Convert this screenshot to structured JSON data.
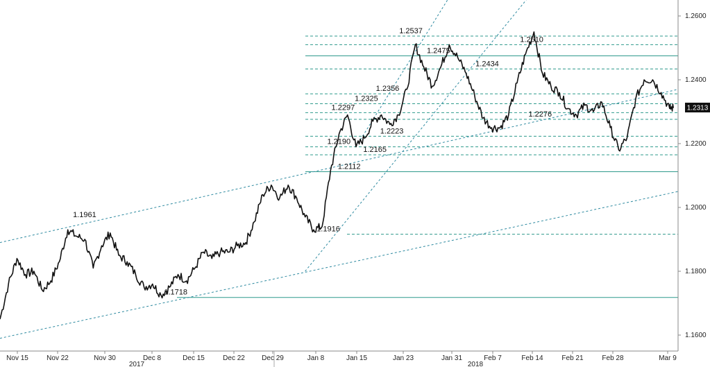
{
  "chart_data": {
    "type": "line",
    "title": "",
    "xlabel": "",
    "ylabel": "",
    "ylim": [
      1.155,
      1.265
    ],
    "y_ticks": [
      "1.2600",
      "1.2400",
      "1.2200",
      "1.2000",
      "1.1800",
      "1.1600"
    ],
    "x_ticks": [
      "Nov 15",
      "Nov 22",
      "Nov 30",
      "Dec 8",
      "Dec 15",
      "Dec 22",
      "Dec 29",
      "Jan 8",
      "Jan 15",
      "Jan 23",
      "Jan 31",
      "Feb 7",
      "Feb 14",
      "Feb 21",
      "Feb 28",
      "Mar 9"
    ],
    "year_labels": [
      "2017",
      "2018"
    ],
    "last_value": "1.2313",
    "grid": false,
    "series": [
      {
        "points": [
          [
            0,
            1.165
          ],
          [
            2,
            1.176
          ],
          [
            4,
            1.184
          ],
          [
            6,
            1.179
          ],
          [
            8,
            1.18
          ],
          [
            10,
            1.174
          ],
          [
            12,
            1.177
          ],
          [
            14,
            1.183
          ],
          [
            16,
            1.193
          ],
          [
            18,
            1.191
          ],
          [
            20,
            1.19
          ],
          [
            22,
            1.181
          ],
          [
            24,
            1.188
          ],
          [
            26,
            1.192
          ],
          [
            28,
            1.185
          ],
          [
            30,
            1.183
          ],
          [
            32,
            1.179
          ],
          [
            34,
            1.175
          ],
          [
            36,
            1.176
          ],
          [
            38,
            1.1725
          ],
          [
            40,
            1.175
          ],
          [
            42,
            1.179
          ],
          [
            44,
            1.177
          ],
          [
            46,
            1.181
          ],
          [
            48,
            1.186
          ],
          [
            50,
            1.184
          ],
          [
            52,
            1.186
          ],
          [
            54,
            1.186
          ],
          [
            56,
            1.188
          ],
          [
            58,
            1.189
          ],
          [
            60,
            1.1955
          ],
          [
            62,
            1.204
          ],
          [
            64,
            1.207
          ],
          [
            66,
            1.203
          ],
          [
            68,
            1.207
          ],
          [
            70,
            1.203
          ],
          [
            72,
            1.197
          ],
          [
            74,
            1.193
          ],
          [
            76,
            1.194
          ],
          [
            78,
            1.2116
          ],
          [
            80,
            1.223
          ],
          [
            82,
            1.229
          ],
          [
            84,
            1.219
          ],
          [
            86,
            1.2217
          ],
          [
            88,
            1.227
          ],
          [
            90,
            1.229
          ],
          [
            92,
            1.226
          ],
          [
            94,
            1.229
          ],
          [
            96,
            1.237
          ],
          [
            98,
            1.251
          ],
          [
            100,
            1.244
          ],
          [
            102,
            1.238
          ],
          [
            104,
            1.244
          ],
          [
            106,
            1.251
          ],
          [
            108,
            1.247
          ],
          [
            110,
            1.242
          ],
          [
            112,
            1.235
          ],
          [
            114,
            1.228
          ],
          [
            116,
            1.225
          ],
          [
            118,
            1.225
          ],
          [
            120,
            1.229
          ],
          [
            122,
            1.239
          ],
          [
            124,
            1.248
          ],
          [
            126,
            1.255
          ],
          [
            128,
            1.242
          ],
          [
            130,
            1.238
          ],
          [
            132,
            1.236
          ],
          [
            134,
            1.231
          ],
          [
            136,
            1.229
          ],
          [
            138,
            1.232
          ],
          [
            140,
            1.23
          ],
          [
            142,
            1.233
          ],
          [
            144,
            1.225
          ],
          [
            146,
            1.218
          ],
          [
            148,
            1.222
          ],
          [
            150,
            1.234
          ],
          [
            152,
            1.24
          ],
          [
            154,
            1.24
          ],
          [
            156,
            1.236
          ],
          [
            158,
            1.231
          ],
          [
            159,
            1.2313
          ]
        ]
      }
    ],
    "annotations": [
      {
        "label": "1.2537",
        "x": 96.5,
        "y": 1.2537
      },
      {
        "label": "1.2510",
        "x": 125,
        "y": 1.251
      },
      {
        "label": "1.2475",
        "x": 103,
        "y": 1.2475
      },
      {
        "label": "1.2434",
        "x": 114.5,
        "y": 1.2434
      },
      {
        "label": "1.2356",
        "x": 91,
        "y": 1.2356
      },
      {
        "label": "1.2325",
        "x": 86,
        "y": 1.2325
      },
      {
        "label": "1.2297",
        "x": 80.5,
        "y": 1.2297
      },
      {
        "label": "1.2276",
        "x": 127,
        "y": 1.2276
      },
      {
        "label": "1.2223",
        "x": 92,
        "y": 1.2223
      },
      {
        "label": "1.2190",
        "x": 79.5,
        "y": 1.219
      },
      {
        "label": "1.2165",
        "x": 88,
        "y": 1.2165
      },
      {
        "label": "1.2112",
        "x": 82,
        "y": 1.2112
      },
      {
        "label": "1.1961",
        "x": 19.5,
        "y": 1.1961
      },
      {
        "label": "1.1916",
        "x": 77,
        "y": 1.1916
      },
      {
        "label": "1.1718",
        "x": 41,
        "y": 1.1718
      }
    ],
    "horizontal_levels": [
      {
        "y": 1.2537,
        "style": "dashed"
      },
      {
        "y": 1.251,
        "style": "dashed"
      },
      {
        "y": 1.2475,
        "style": "solid"
      },
      {
        "y": 1.2434,
        "style": "dashed"
      },
      {
        "y": 1.2356,
        "style": "dashed"
      },
      {
        "y": 1.2325,
        "style": "dashed"
      },
      {
        "y": 1.2297,
        "style": "dashed"
      },
      {
        "y": 1.2276,
        "style": "dashed"
      },
      {
        "y": 1.2223,
        "style": "dashed"
      },
      {
        "y": 1.219,
        "style": "dashed"
      },
      {
        "y": 1.2165,
        "style": "dashed"
      },
      {
        "y": 1.2112,
        "style": "solid"
      },
      {
        "y": 1.1916,
        "style": "dashed"
      },
      {
        "y": 1.1718,
        "style": "solid"
      }
    ],
    "trendlines": [
      {
        "x1": 0,
        "y1": 1.159,
        "x2": 160,
        "y2": 1.205
      },
      {
        "x1": 0,
        "y1": 1.189,
        "x2": 160,
        "y2": 1.237
      },
      {
        "x1": 72,
        "y1": 1.18,
        "x2": 126,
        "y2": 1.268
      },
      {
        "x1": 84,
        "y1": 1.219,
        "x2": 107,
        "y2": 1.268
      }
    ],
    "colors": {
      "price": "#111111",
      "level": "#2e9a8c",
      "trend": "#2e8aa0",
      "axis": "#888888"
    }
  }
}
